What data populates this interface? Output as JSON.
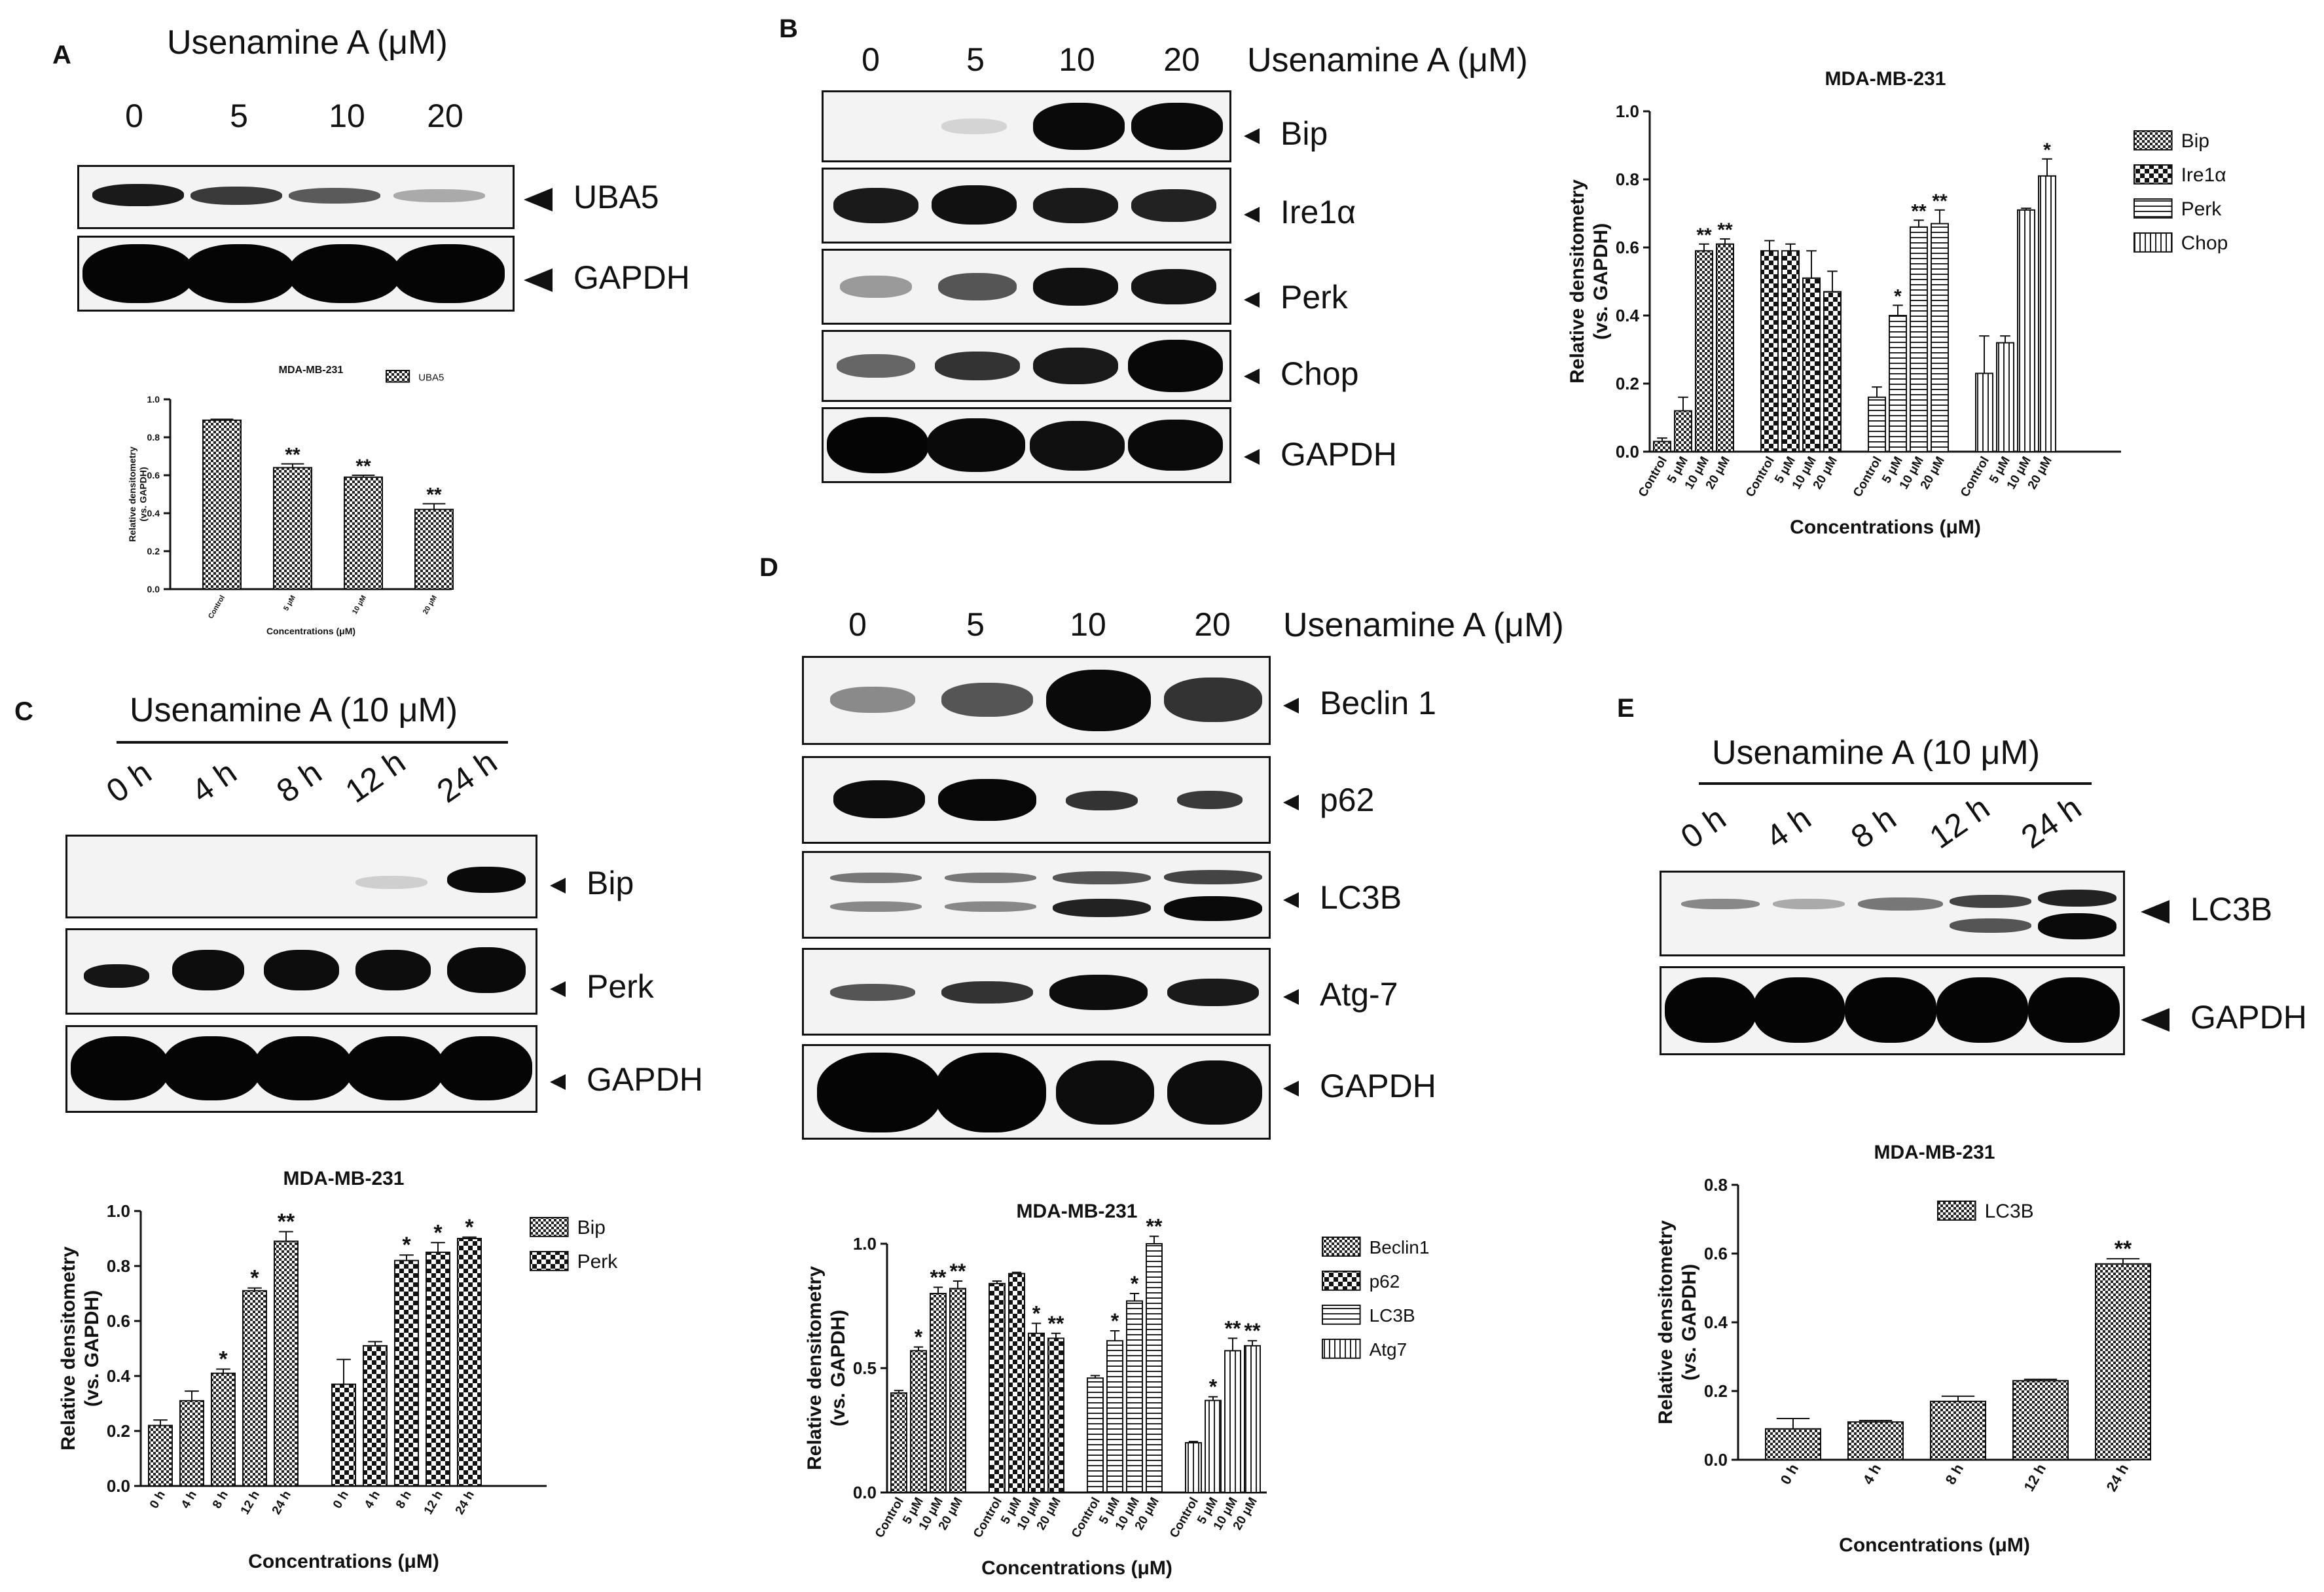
{
  "panels": {
    "A": {
      "letter": "A",
      "title": "Usenamine A (μM)",
      "lanes": [
        "0",
        "5",
        "10",
        "20"
      ],
      "blots": [
        "UBA5",
        "GAPDH"
      ]
    },
    "B": {
      "letter": "B",
      "title": "Usenamine A (μM)",
      "lanes": [
        "0",
        "5",
        "10",
        "20"
      ],
      "blots": [
        "Bip",
        "Ire1α",
        "Perk",
        "Chop",
        "GAPDH"
      ]
    },
    "C": {
      "letter": "C",
      "title": "Usenamine A (10 μM)",
      "lanes": [
        "0 h",
        "4 h",
        "8 h",
        "12 h",
        "24 h"
      ],
      "blots": [
        "Bip",
        "Perk",
        "GAPDH"
      ]
    },
    "D": {
      "letter": "D",
      "title": "Usenamine A (μM)",
      "lanes": [
        "0",
        "5",
        "10",
        "20"
      ],
      "blots": [
        "Beclin 1",
        "p62",
        "LC3B",
        "Atg-7",
        "GAPDH"
      ]
    },
    "E": {
      "letter": "E",
      "title": "Usenamine A (10 μM)",
      "lanes": [
        "0 h",
        "4 h",
        "8 h",
        "12 h",
        "24 h"
      ],
      "blots": [
        "LC3B",
        "GAPDH"
      ]
    }
  },
  "chart_data": [
    {
      "id": "A",
      "type": "bar",
      "title": "MDA-MB-231",
      "xlabel": "Concentrations (μM)",
      "ylabel": "Relative densitometry (vs. GAPDH)",
      "ylim": [
        0,
        1.0
      ],
      "yticks": [
        "0.0",
        "0.2",
        "0.4",
        "0.6",
        "0.8",
        "1.0"
      ],
      "categories": [
        "Control",
        "5 μM",
        "10 μM",
        "20 μM"
      ],
      "series": [
        {
          "name": "UBA5",
          "values": [
            0.89,
            0.64,
            0.59,
            0.42
          ],
          "errors": [
            0.005,
            0.02,
            0.01,
            0.03
          ],
          "stars": [
            "",
            "**",
            "**",
            "**"
          ]
        }
      ],
      "legend": "top-right",
      "grid": false
    },
    {
      "id": "B",
      "type": "bar",
      "title": "MDA-MB-231",
      "xlabel": "Concentrations (μM)",
      "ylabel": "Relative densitometry (vs. GAPDH)",
      "ylim": [
        0,
        1.0
      ],
      "yticks": [
        "0.0",
        "0.2",
        "0.4",
        "0.6",
        "0.8",
        "1.0"
      ],
      "categories": [
        "Control",
        "5 μM",
        "10 μM",
        "20 μM"
      ],
      "series": [
        {
          "name": "Bip",
          "values": [
            0.03,
            0.12,
            0.59,
            0.61
          ],
          "errors": [
            0.01,
            0.04,
            0.02,
            0.015
          ],
          "stars": [
            "",
            "",
            "**",
            "**"
          ]
        },
        {
          "name": "Ire1α",
          "values": [
            0.59,
            0.59,
            0.51,
            0.47
          ],
          "errors": [
            0.03,
            0.02,
            0.08,
            0.06
          ],
          "stars": [
            "",
            "",
            "",
            ""
          ]
        },
        {
          "name": "Perk",
          "values": [
            0.16,
            0.4,
            0.66,
            0.67
          ],
          "errors": [
            0.03,
            0.03,
            0.02,
            0.04
          ],
          "stars": [
            "",
            "*",
            "**",
            "**"
          ]
        },
        {
          "name": "Chop",
          "values": [
            0.23,
            0.32,
            0.71,
            0.81
          ],
          "errors": [
            0.11,
            0.02,
            0.005,
            0.05
          ],
          "stars": [
            "",
            "",
            "",
            "*"
          ]
        }
      ],
      "legend": "top-right",
      "grid": false
    },
    {
      "id": "C",
      "type": "bar",
      "title": "MDA-MB-231",
      "xlabel": "Concentrations (μM)",
      "ylabel": "Relative densitometry (vs. GAPDH)",
      "ylim": [
        0,
        1.0
      ],
      "yticks": [
        "0.0",
        "0.2",
        "0.4",
        "0.6",
        "0.8",
        "1.0"
      ],
      "categories": [
        "0 h",
        "4 h",
        "8 h",
        "12 h",
        "24 h"
      ],
      "series": [
        {
          "name": "Bip",
          "values": [
            0.22,
            0.31,
            0.41,
            0.71,
            0.89
          ],
          "errors": [
            0.02,
            0.035,
            0.015,
            0.01,
            0.035
          ],
          "stars": [
            "",
            "",
            "*",
            "*",
            "**"
          ]
        },
        {
          "name": "Perk",
          "values": [
            0.37,
            0.51,
            0.82,
            0.85,
            0.9
          ],
          "errors": [
            0.09,
            0.015,
            0.02,
            0.035,
            0.005
          ],
          "stars": [
            "",
            "",
            "*",
            "*",
            "*"
          ]
        }
      ],
      "legend": "top-right",
      "grid": false
    },
    {
      "id": "D",
      "type": "bar",
      "title": "MDA-MB-231",
      "xlabel": "Concentrations (μM)",
      "ylabel": "Relative densitometry (vs. GAPDH)",
      "ylim": [
        0,
        1.0
      ],
      "yticks": [
        "0.0",
        "0.5",
        "1.0"
      ],
      "categories": [
        "Control",
        "5 μM",
        "10 μM",
        "20 μM"
      ],
      "series": [
        {
          "name": "Beclin1",
          "values": [
            0.4,
            0.57,
            0.8,
            0.82
          ],
          "errors": [
            0.01,
            0.015,
            0.025,
            0.03
          ],
          "stars": [
            "",
            "*",
            "**",
            "**"
          ]
        },
        {
          "name": "p62",
          "values": [
            0.84,
            0.88,
            0.64,
            0.62
          ],
          "errors": [
            0.01,
            0.005,
            0.04,
            0.02
          ],
          "stars": [
            "",
            "",
            "*",
            "**"
          ]
        },
        {
          "name": "LC3B",
          "values": [
            0.46,
            0.61,
            0.77,
            1.0
          ],
          "errors": [
            0.01,
            0.04,
            0.03,
            0.03
          ],
          "stars": [
            "",
            "*",
            "*",
            "**"
          ]
        },
        {
          "name": "Atg7",
          "values": [
            0.2,
            0.37,
            0.57,
            0.59
          ],
          "errors": [
            0.005,
            0.015,
            0.05,
            0.02
          ],
          "stars": [
            "",
            "*",
            "**",
            "**"
          ]
        }
      ],
      "legend": "top-right",
      "grid": false
    },
    {
      "id": "E",
      "type": "bar",
      "title": "MDA-MB-231",
      "xlabel": "Concentrations (μM)",
      "ylabel": "Relative densitometry (vs. GAPDH)",
      "ylim": [
        0,
        0.8
      ],
      "yticks": [
        "0.0",
        "0.2",
        "0.4",
        "0.6",
        "0.8"
      ],
      "categories": [
        "0 h",
        "4 h",
        "8 h",
        "12 h",
        "24 h"
      ],
      "series": [
        {
          "name": "LC3B",
          "values": [
            0.09,
            0.11,
            0.17,
            0.23,
            0.57
          ],
          "errors": [
            0.03,
            0.004,
            0.015,
            0.004,
            0.015
          ],
          "stars": [
            "",
            "",
            "",
            "",
            "**"
          ]
        }
      ],
      "legend": "top-right",
      "grid": false
    }
  ]
}
